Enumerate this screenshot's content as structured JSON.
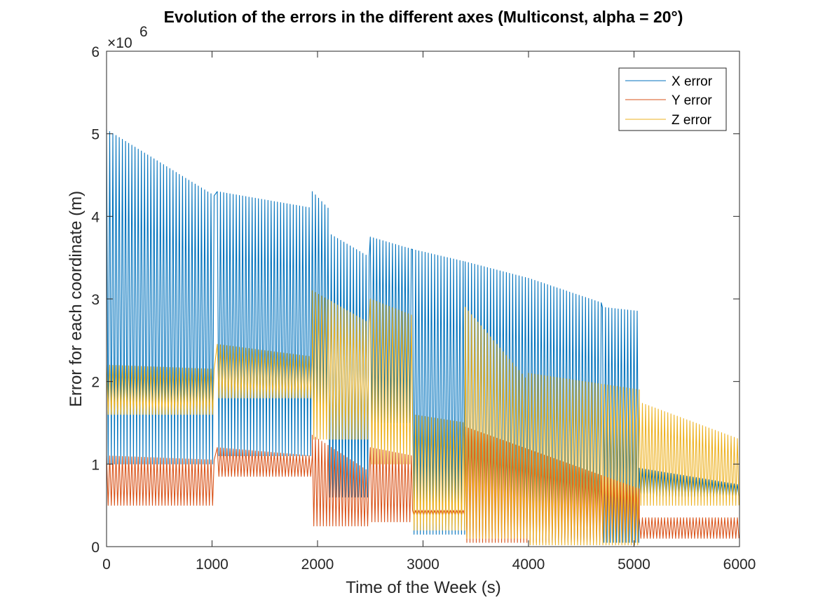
{
  "chart_data": {
    "type": "line",
    "title": "Evolution of the errors in the different axes (Multiconst, alpha = 20°)",
    "xlabel": "Time of the Week (s)",
    "ylabel": "Error for each coordinate (m)",
    "xlim": [
      0,
      6000
    ],
    "ylim": [
      0,
      6000000
    ],
    "xticks": [
      "0",
      "1000",
      "2000",
      "3000",
      "4000",
      "5000",
      "6000"
    ],
    "yticks": [
      "0",
      "1",
      "2",
      "3",
      "4",
      "5",
      "6"
    ],
    "y_multiplier_label": "×10",
    "y_multiplier_exponent": "6",
    "grid": false,
    "legend_position": "top-right",
    "sample_step": 30,
    "series": [
      {
        "name": "X error",
        "color": "#0072BD",
        "segments": [
          {
            "x_start": 0,
            "x_end": 1020,
            "low": 1000000,
            "high_start": 5050000,
            "high_end": 4250000
          },
          {
            "x_start": 1050,
            "x_end": 1950,
            "low": 1100000,
            "high_start": 4300000,
            "high_end": 4100000
          },
          {
            "x_start": 1950,
            "x_end": 2100,
            "low": 1500000,
            "high_start": 4300000,
            "high_end": 4100000
          },
          {
            "x_start": 2100,
            "x_end": 2500,
            "low": 600000,
            "high_start": 3800000,
            "high_end": 3500000
          },
          {
            "x_start": 2500,
            "x_end": 2900,
            "low": 1500000,
            "high_start": 3750000,
            "high_end": 3600000
          },
          {
            "x_start": 2900,
            "x_end": 3400,
            "low": 150000,
            "high_start": 3600000,
            "high_end": 3450000
          },
          {
            "x_start": 3400,
            "x_end": 4000,
            "low": 200000,
            "high_start": 3450000,
            "high_end": 3250000
          },
          {
            "x_start": 4000,
            "x_end": 4700,
            "low": 80000,
            "high_start": 3250000,
            "high_end": 2950000
          },
          {
            "x_start": 4700,
            "x_end": 5050,
            "low": 50000,
            "high_start": 2900000,
            "high_end": 2850000
          },
          {
            "x_start": 5050,
            "x_end": 6000,
            "low": 600000,
            "high_start": 950000,
            "high_end": 750000
          }
        ]
      },
      {
        "name": "Y error",
        "color": "#D95319",
        "segments": [
          {
            "x_start": 0,
            "x_end": 1020,
            "low": 500000,
            "high_start": 1100000,
            "high_end": 1050000
          },
          {
            "x_start": 1050,
            "x_end": 1950,
            "low": 850000,
            "high_start": 1200000,
            "high_end": 1100000
          },
          {
            "x_start": 1950,
            "x_end": 2500,
            "low": 250000,
            "high_start": 1350000,
            "high_end": 900000
          },
          {
            "x_start": 2500,
            "x_end": 2900,
            "low": 300000,
            "high_start": 1200000,
            "high_end": 1100000
          },
          {
            "x_start": 2900,
            "x_end": 3400,
            "low": 380000,
            "high_start": 440000,
            "high_end": 440000
          },
          {
            "x_start": 3400,
            "x_end": 5050,
            "low": 50000,
            "high_start": 1450000,
            "high_end": 700000
          },
          {
            "x_start": 5050,
            "x_end": 6000,
            "low": 100000,
            "high_start": 350000,
            "high_end": 350000
          }
        ]
      },
      {
        "name": "Z error",
        "color": "#EDB120",
        "segments": [
          {
            "x_start": 0,
            "x_end": 1020,
            "low": 1600000,
            "high_start": 2200000,
            "high_end": 2150000
          },
          {
            "x_start": 1050,
            "x_end": 1950,
            "low": 1800000,
            "high_start": 2450000,
            "high_end": 2300000
          },
          {
            "x_start": 1950,
            "x_end": 2500,
            "low": 1300000,
            "high_start": 3100000,
            "high_end": 2700000
          },
          {
            "x_start": 2500,
            "x_end": 2900,
            "low": 1000000,
            "high_start": 3000000,
            "high_end": 2800000
          },
          {
            "x_start": 2900,
            "x_end": 3400,
            "low": 200000,
            "high_start": 1600000,
            "high_end": 1500000
          },
          {
            "x_start": 3400,
            "x_end": 4000,
            "low": 100000,
            "high_start": 2900000,
            "high_end": 2000000
          },
          {
            "x_start": 4000,
            "x_end": 5050,
            "low": 20000,
            "high_start": 2100000,
            "high_end": 1900000
          },
          {
            "x_start": 5050,
            "x_end": 6000,
            "low": 500000,
            "high_start": 1750000,
            "high_end": 1300000
          }
        ]
      }
    ]
  }
}
